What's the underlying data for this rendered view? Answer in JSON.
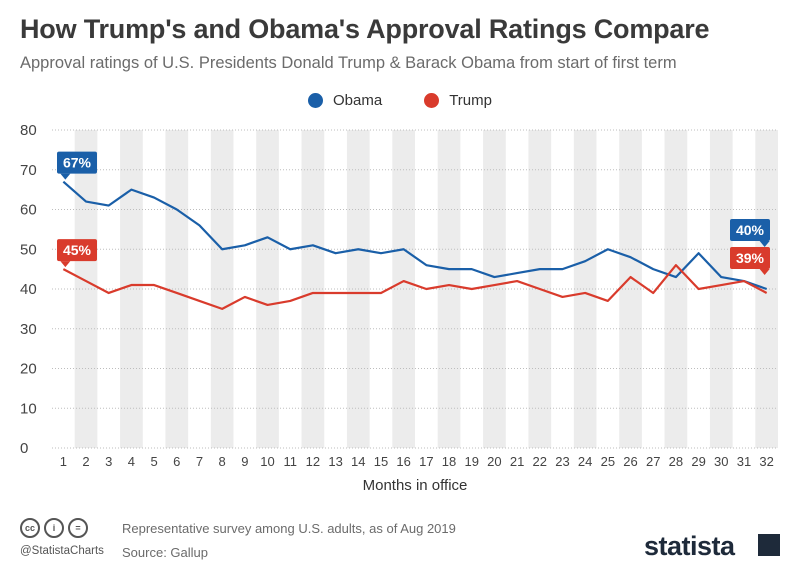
{
  "title": "How Trump's and Obama's Approval Ratings Compare",
  "subtitle": "Approval ratings of U.S. Presidents Donald Trump & Barack Obama from start of first term",
  "footer": {
    "note": "Representative survey among U.S. adults, as of Aug 2019",
    "source": "Source: Gallup",
    "handle": "@StatistaCharts",
    "brand": "statista",
    "cc_icons": [
      "cc",
      "i",
      "="
    ]
  },
  "chart_data": {
    "type": "line",
    "title": "How Trump's and Obama's Approval Ratings Compare",
    "subtitle": "Approval ratings of U.S. Presidents Donald Trump & Barack Obama from start of first term",
    "xlabel": "Months in office",
    "ylabel": "",
    "x": [
      1,
      2,
      3,
      4,
      5,
      6,
      7,
      8,
      9,
      10,
      11,
      12,
      13,
      14,
      15,
      16,
      17,
      18,
      19,
      20,
      21,
      22,
      23,
      24,
      25,
      26,
      27,
      28,
      29,
      30,
      31,
      32
    ],
    "yticks": [
      0,
      10,
      20,
      30,
      40,
      50,
      60,
      70,
      80
    ],
    "ylim": [
      0,
      80
    ],
    "grid": true,
    "legend": "top-center",
    "series": [
      {
        "name": "Obama",
        "color": "#1a5fa8",
        "values": [
          67,
          62,
          61,
          65,
          63,
          60,
          56,
          50,
          51,
          53,
          50,
          51,
          49,
          50,
          49,
          50,
          46,
          45,
          45,
          43,
          44,
          45,
          45,
          47,
          50,
          48,
          45,
          43,
          49,
          43,
          42,
          40
        ],
        "first_label": "67%",
        "last_label": "40%"
      },
      {
        "name": "Trump",
        "color": "#d93b2c",
        "values": [
          45,
          42,
          39,
          41,
          41,
          39,
          37,
          35,
          38,
          36,
          37,
          39,
          39,
          39,
          39,
          42,
          40,
          41,
          40,
          41,
          42,
          40,
          38,
          39,
          37,
          43,
          39,
          46,
          40,
          41,
          42,
          39
        ],
        "first_label": "45%",
        "last_label": "39%"
      }
    ]
  }
}
